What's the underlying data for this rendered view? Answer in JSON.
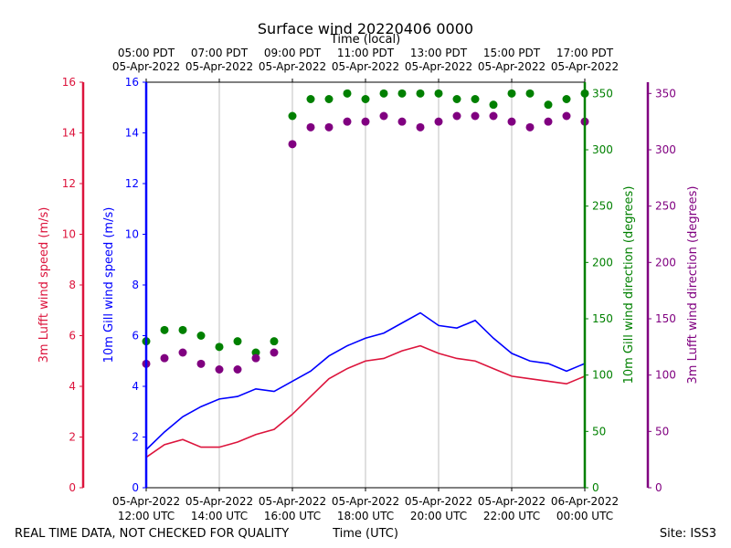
{
  "chart_data": {
    "type": "line+scatter",
    "title": "Surface wind 20220406 0000",
    "footer_left": "REAL TIME DATA, NOT CHECKED FOR QUALITY",
    "footer_right": "Site: ISS3",
    "xlabel_bottom": "Time (UTC)",
    "xlabel_top": "Time (local)",
    "x_range_hours_utc": [
      12,
      24
    ],
    "x_ticks_bottom": [
      {
        "h": 12,
        "l1": "05-Apr-2022",
        "l2": "12:00 UTC"
      },
      {
        "h": 14,
        "l1": "05-Apr-2022",
        "l2": "14:00 UTC"
      },
      {
        "h": 16,
        "l1": "05-Apr-2022",
        "l2": "16:00 UTC"
      },
      {
        "h": 18,
        "l1": "05-Apr-2022",
        "l2": "18:00 UTC"
      },
      {
        "h": 20,
        "l1": "05-Apr-2022",
        "l2": "20:00 UTC"
      },
      {
        "h": 22,
        "l1": "05-Apr-2022",
        "l2": "22:00 UTC"
      },
      {
        "h": 24,
        "l1": "06-Apr-2022",
        "l2": "00:00 UTC"
      }
    ],
    "x_ticks_top": [
      {
        "h": 12,
        "l1": "05:00 PDT",
        "l2": "05-Apr-2022"
      },
      {
        "h": 14,
        "l1": "07:00 PDT",
        "l2": "05-Apr-2022"
      },
      {
        "h": 16,
        "l1": "09:00 PDT",
        "l2": "05-Apr-2022"
      },
      {
        "h": 18,
        "l1": "11:00 PDT",
        "l2": "05-Apr-2022"
      },
      {
        "h": 20,
        "l1": "13:00 PDT",
        "l2": "05-Apr-2022"
      },
      {
        "h": 22,
        "l1": "15:00 PDT",
        "l2": "05-Apr-2022"
      },
      {
        "h": 24,
        "l1": "17:00 PDT",
        "l2": "05-Apr-2022"
      }
    ],
    "axes": {
      "lufft_speed": {
        "label": "3m Lufft wind speed (m/s)",
        "color": "#dc143c",
        "ylim": [
          0,
          16
        ],
        "ticks": [
          0,
          2,
          4,
          6,
          8,
          10,
          12,
          14,
          16
        ]
      },
      "gill_speed": {
        "label": "10m Gill wind speed (m/s)",
        "color": "#0000ff",
        "ylim": [
          0,
          16
        ],
        "ticks": [
          0,
          2,
          4,
          6,
          8,
          10,
          12,
          14,
          16
        ]
      },
      "gill_dir": {
        "label": "10m Gill wind direction (degrees)",
        "color": "#008000",
        "ylim": [
          0,
          360
        ],
        "ticks": [
          0,
          50,
          100,
          150,
          200,
          250,
          300,
          350
        ]
      },
      "lufft_dir": {
        "label": "3m Lufft wind direction (degrees)",
        "color": "#800080",
        "ylim": [
          0,
          360
        ],
        "ticks": [
          0,
          50,
          100,
          150,
          200,
          250,
          300,
          350
        ]
      }
    },
    "series": [
      {
        "name": "10m Gill wind speed",
        "axis": "gill_speed",
        "style": "line",
        "color": "#0000ff",
        "x": [
          12.0,
          12.5,
          13.0,
          13.5,
          14.0,
          14.5,
          15.0,
          15.5,
          16.0,
          16.5,
          17.0,
          17.5,
          18.0,
          18.5,
          19.0,
          19.5,
          20.0,
          20.5,
          21.0,
          21.5,
          22.0,
          22.5,
          23.0,
          23.5,
          24.0
        ],
        "y": [
          1.5,
          2.2,
          2.8,
          3.2,
          3.5,
          3.6,
          3.9,
          3.8,
          4.2,
          4.6,
          5.2,
          5.6,
          5.9,
          6.1,
          6.5,
          6.9,
          6.4,
          6.3,
          6.6,
          5.9,
          5.3,
          5.0,
          4.9,
          4.6,
          4.9
        ]
      },
      {
        "name": "3m Lufft wind speed",
        "axis": "lufft_speed",
        "style": "line",
        "color": "#dc143c",
        "x": [
          12.0,
          12.5,
          13.0,
          13.5,
          14.0,
          14.5,
          15.0,
          15.5,
          16.0,
          16.5,
          17.0,
          17.5,
          18.0,
          18.5,
          19.0,
          19.5,
          20.0,
          20.5,
          21.0,
          21.5,
          22.0,
          22.5,
          23.0,
          23.5,
          24.0
        ],
        "y": [
          1.2,
          1.7,
          1.9,
          1.6,
          1.6,
          1.8,
          2.1,
          2.3,
          2.9,
          3.6,
          4.3,
          4.7,
          5.0,
          5.1,
          5.4,
          5.6,
          5.3,
          5.1,
          5.0,
          4.7,
          4.4,
          4.3,
          4.2,
          4.1,
          4.4
        ]
      },
      {
        "name": "10m Gill wind direction",
        "axis": "gill_dir",
        "style": "scatter",
        "color": "#008000",
        "x": [
          12.0,
          12.5,
          13.0,
          13.5,
          14.0,
          14.5,
          15.0,
          15.5,
          16.0,
          16.5,
          17.0,
          17.5,
          18.0,
          18.5,
          19.0,
          19.5,
          20.0,
          20.5,
          21.0,
          21.5,
          22.0,
          22.5,
          23.0,
          23.5,
          24.0
        ],
        "y": [
          130,
          140,
          140,
          135,
          125,
          130,
          120,
          130,
          330,
          345,
          345,
          350,
          345,
          350,
          350,
          350,
          350,
          345,
          345,
          340,
          350,
          350,
          340,
          345,
          350
        ]
      },
      {
        "name": "3m Lufft wind direction",
        "axis": "lufft_dir",
        "style": "scatter",
        "color": "#800080",
        "x": [
          12.0,
          12.5,
          13.0,
          13.5,
          14.0,
          14.5,
          15.0,
          15.5,
          16.0,
          16.5,
          17.0,
          17.5,
          18.0,
          18.5,
          19.0,
          19.5,
          20.0,
          20.5,
          21.0,
          21.5,
          22.0,
          22.5,
          23.0,
          23.5,
          24.0
        ],
        "y": [
          110,
          115,
          120,
          110,
          105,
          105,
          115,
          120,
          305,
          320,
          320,
          325,
          325,
          330,
          325,
          320,
          325,
          330,
          330,
          330,
          325,
          320,
          325,
          330,
          325
        ]
      }
    ]
  }
}
